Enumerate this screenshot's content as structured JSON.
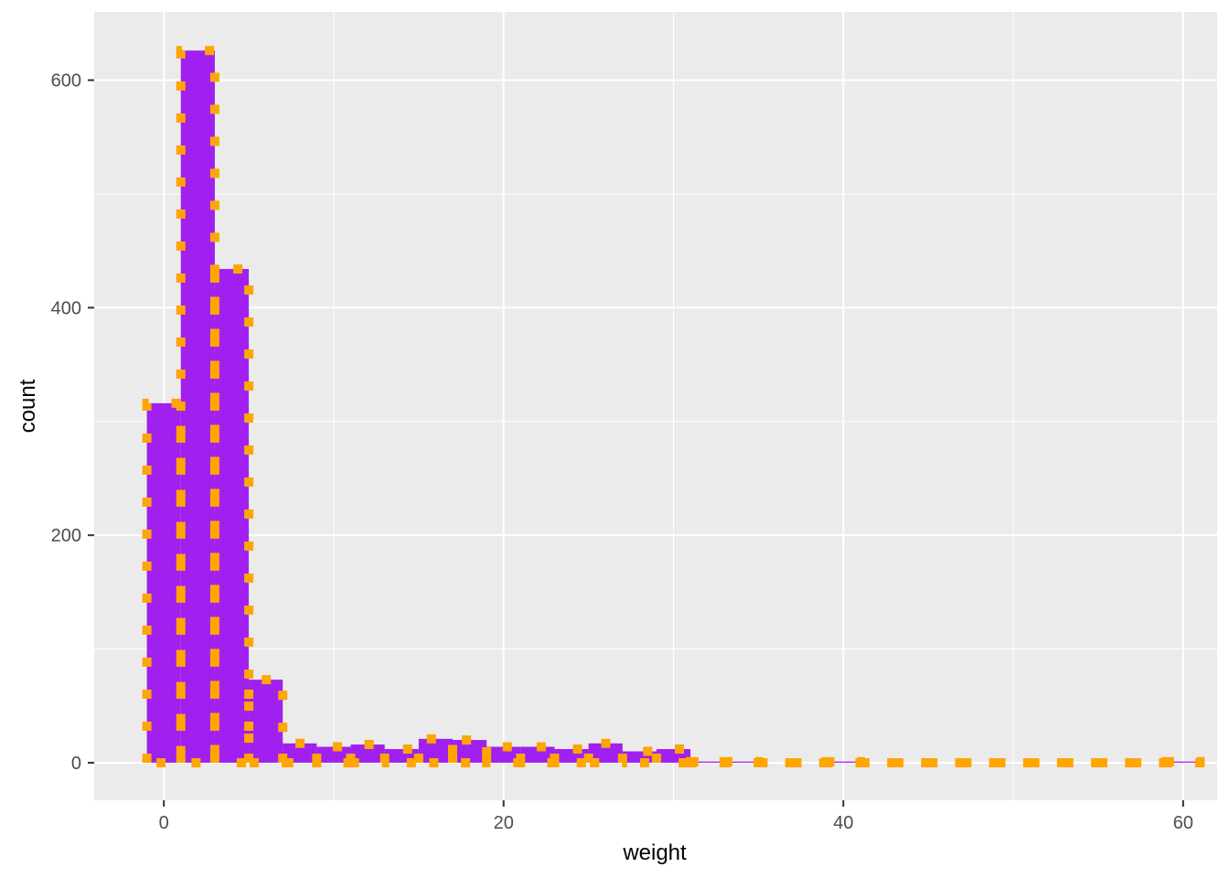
{
  "chart_data": {
    "type": "bar",
    "subtype": "histogram",
    "title": "",
    "xlabel": "weight",
    "ylabel": "count",
    "xlim": [
      -4.1,
      62.0
    ],
    "ylim": [
      -33,
      660
    ],
    "x_ticks": [
      0,
      20,
      40,
      60
    ],
    "x_tick_labels": [
      "0",
      "20",
      "40",
      "60"
    ],
    "y_ticks": [
      0,
      200,
      400,
      600
    ],
    "y_tick_labels": [
      "0",
      "200",
      "400",
      "600"
    ],
    "grid": true,
    "legend": "none",
    "bin_width": 2.0,
    "bin_starts": [
      -1.0,
      1.0,
      3.0,
      5.0,
      7.0,
      9.0,
      11.0,
      13.0,
      15.0,
      17.0,
      19.0,
      21.0,
      23.0,
      25.0,
      27.0,
      29.0,
      31.0,
      33.0,
      35.0,
      37.0,
      39.0,
      41.0,
      43.0,
      45.0,
      47.0,
      49.0,
      51.0,
      53.0,
      55.0,
      57.0,
      59.0
    ],
    "values": [
      316,
      626,
      434,
      73,
      17,
      14,
      16,
      12,
      21,
      20,
      14,
      14,
      12,
      17,
      10,
      12,
      1,
      1,
      0,
      0,
      1,
      0,
      0,
      0,
      0,
      0,
      0,
      0,
      0,
      0,
      1
    ],
    "colors": {
      "fill": "#A020F0",
      "outline": "#FFA500",
      "panel": "#EBEBEB",
      "grid": "#FFFFFF"
    },
    "outline_style": "dotted"
  }
}
